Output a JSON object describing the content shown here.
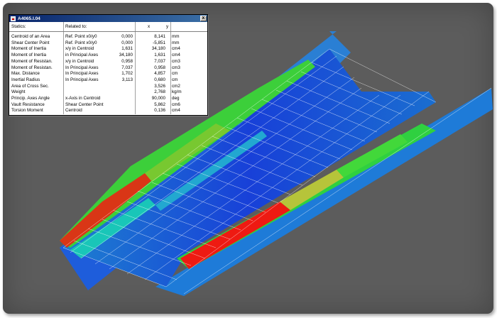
{
  "window": {
    "title": "A4065.I.04",
    "close_glyph": "x",
    "headers": [
      "Statics:",
      "Related to:",
      "x",
      "y",
      ""
    ],
    "rows": [
      {
        "name": "Centroid of an Area",
        "related": "Ref. Point x0/y0",
        "x": "0,000",
        "y": "8,141",
        "unit": "mm"
      },
      {
        "name": "Shear Center Point",
        "related": "Ref. Point x0/y0",
        "x": "0,000",
        "y": "-5,851",
        "unit": "mm"
      },
      {
        "name": "Moment of Inertia",
        "related": "x/y in Centroid",
        "x": "1,631",
        "y": "34,180",
        "unit": "cm4"
      },
      {
        "name": "Moment of Inertia",
        "related": "in Principal Axes",
        "x": "34,180",
        "y": "1,631",
        "unit": "cm4"
      },
      {
        "name": "Moment of Resistan.",
        "related": "x/y in Centroid",
        "x": "0,958",
        "y": "7,037",
        "unit": "cm3"
      },
      {
        "name": "Moment of Resistan.",
        "related": "In Principal Axes",
        "x": "7,037",
        "y": "0,958",
        "unit": "cm3"
      },
      {
        "name": "Max. Distance",
        "related": "In Principal Axes",
        "x": "1,702",
        "y": "4,857",
        "unit": "cm"
      },
      {
        "name": "Inertial Radius",
        "related": "In Principal Axes",
        "x": "3,113",
        "y": "0,680",
        "unit": "cm"
      },
      {
        "name": "Area of Cross Sec.",
        "related": "",
        "x": "",
        "y": "3,526",
        "unit": "cm2"
      },
      {
        "name": "Weight",
        "related": "",
        "x": "",
        "y": "2,768",
        "unit": "kg/m"
      },
      {
        "name": "Princip. Axes Angle",
        "related": "x-Axis in Centroid",
        "x": "",
        "y": "90,000",
        "unit": "deg"
      },
      {
        "name": "Vault Resistance",
        "related": "Shear Center Point",
        "x": "",
        "y": "5,862",
        "unit": "cm6"
      },
      {
        "name": "Torsion Moment",
        "related": "Centroid",
        "x": "",
        "y": "0,136",
        "unit": "cm4"
      }
    ]
  },
  "colors": {
    "background": "#5c5c5c",
    "mesh_blue": "#1e4bd8",
    "mesh_cyan": "#1aa8c8",
    "mesh_green": "#3fd83a",
    "mesh_red": "#e81e16",
    "grid_line": "#ffffff"
  }
}
